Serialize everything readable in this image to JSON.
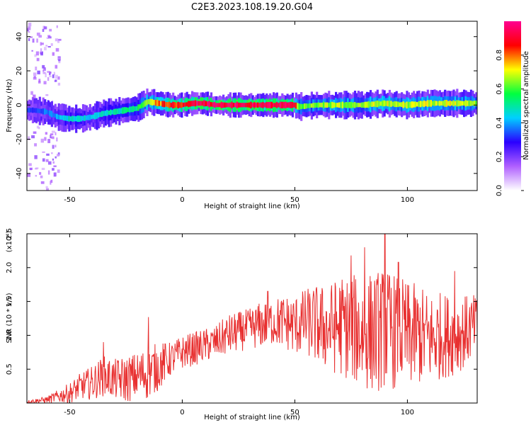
{
  "figure_title": "C2E3.2023.108.19.20.G04",
  "chart_data": [
    {
      "type": "heatmap",
      "title": "",
      "xlabel": "Height of straight line (km)",
      "ylabel": "Frequency (Hz)",
      "xlim": [
        -69,
        131
      ],
      "ylim": [
        -50,
        49
      ],
      "x_ticks": [
        -50,
        0,
        50,
        100
      ],
      "y_ticks": [
        -40,
        -20,
        0,
        20,
        40
      ],
      "colorbar": {
        "label": "Normalized spectral amplitude",
        "range": [
          0,
          1
        ],
        "ticks": [
          "0.0",
          "0.2",
          "0.4",
          "0.6",
          "0.8"
        ],
        "colors": [
          "#ffffff",
          "#b060ff",
          "#2a00ff",
          "#00d0ff",
          "#00ff40",
          "#ffff00",
          "#ff0000",
          "#ff0090"
        ]
      },
      "ridge": {
        "x": [
          -66,
          -60,
          -55,
          -50,
          -45,
          -40,
          -35,
          -30,
          -25,
          -20,
          -15,
          -10,
          -5,
          0,
          5,
          10,
          15,
          20,
          30,
          40,
          50,
          52,
          60,
          70,
          80,
          90,
          100,
          110,
          120,
          131
        ],
        "y": [
          -3,
          -4,
          -7,
          -8,
          -8,
          -7,
          -5,
          -4,
          -3,
          -2,
          2,
          1,
          0,
          0,
          1,
          1,
          0,
          0,
          0,
          0,
          0,
          -1,
          0,
          0,
          0,
          1,
          0,
          1,
          1,
          1
        ],
        "amplitude": [
          0.35,
          0.4,
          0.45,
          0.5,
          0.5,
          0.45,
          0.5,
          0.55,
          0.55,
          0.6,
          0.75,
          0.85,
          0.9,
          0.95,
          1.0,
          1.0,
          1.0,
          1.0,
          1.0,
          1.0,
          1.0,
          0.65,
          0.7,
          0.72,
          0.7,
          0.75,
          0.72,
          0.75,
          0.75,
          0.7
        ]
      }
    },
    {
      "type": "line",
      "title": "",
      "xlabel": "Height of straight line (km)",
      "ylabel": "SNR (10 * v/v)",
      "y_multiplier": "(x10⁴)",
      "xlim": [
        -69,
        131
      ],
      "ylim": [
        0,
        2.5
      ],
      "x_ticks": [
        -50,
        0,
        50,
        100
      ],
      "y_ticks": [
        "0.5",
        "1.0",
        "1.5",
        "2.0",
        "2.5"
      ],
      "line_color": "#e83030",
      "series": [
        {
          "x": [
            -69,
            -60,
            -50,
            -45,
            -40,
            -35,
            -30,
            -25,
            -20,
            -15,
            -10,
            -5,
            0,
            5,
            10,
            15,
            20,
            25,
            30,
            35,
            40,
            45,
            50,
            55,
            60,
            65,
            70,
            75,
            80,
            85,
            90,
            95,
            100,
            105,
            110,
            115,
            120,
            125,
            131
          ],
          "values": [
            0.02,
            0.05,
            0.15,
            0.25,
            0.3,
            0.4,
            0.35,
            0.35,
            0.4,
            0.45,
            0.55,
            0.65,
            0.75,
            0.8,
            0.85,
            0.9,
            1.0,
            1.05,
            1.1,
            1.15,
            1.2,
            1.2,
            1.15,
            1.2,
            1.15,
            1.1,
            1.15,
            1.1,
            1.05,
            1.05,
            1.1,
            1.05,
            1.0,
            1.0,
            0.95,
            1.0,
            1.0,
            1.05,
            1.15
          ],
          "spread": [
            0.02,
            0.05,
            0.15,
            0.2,
            0.25,
            0.3,
            0.3,
            0.35,
            0.35,
            0.4,
            0.35,
            0.25,
            0.25,
            0.25,
            0.25,
            0.25,
            0.3,
            0.3,
            0.3,
            0.35,
            0.35,
            0.4,
            0.45,
            0.5,
            0.6,
            0.65,
            0.75,
            0.8,
            0.85,
            0.9,
            0.9,
            0.85,
            0.8,
            0.75,
            0.7,
            0.65,
            0.6,
            0.55,
            0.45
          ],
          "peaks": [
            {
              "x": -35,
              "y": 0.9
            },
            {
              "x": -15,
              "y": 1.27
            },
            {
              "x": 38,
              "y": 1.65
            },
            {
              "x": 75,
              "y": 2.18
            },
            {
              "x": 81,
              "y": 2.3
            },
            {
              "x": 90,
              "y": 2.5
            },
            {
              "x": 96,
              "y": 2.08
            },
            {
              "x": 121,
              "y": 1.95
            }
          ]
        }
      ]
    }
  ]
}
